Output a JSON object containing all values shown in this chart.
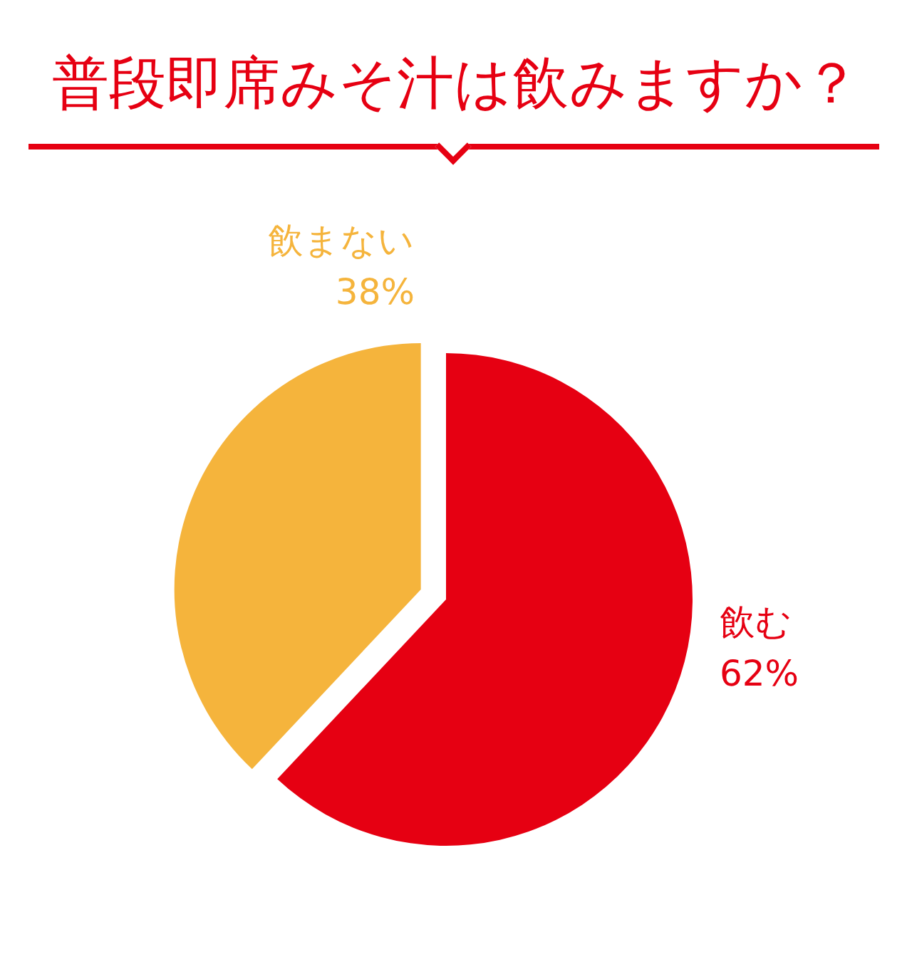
{
  "chart_data": {
    "type": "pie",
    "title": "普段即席みそ汁は飲みますか？",
    "categories": [
      "飲む",
      "飲まない"
    ],
    "values": [
      62,
      38
    ],
    "colors": [
      "#e60012",
      "#f5b43c"
    ],
    "value_labels": [
      "62%",
      "38%"
    ],
    "legend": false
  }
}
